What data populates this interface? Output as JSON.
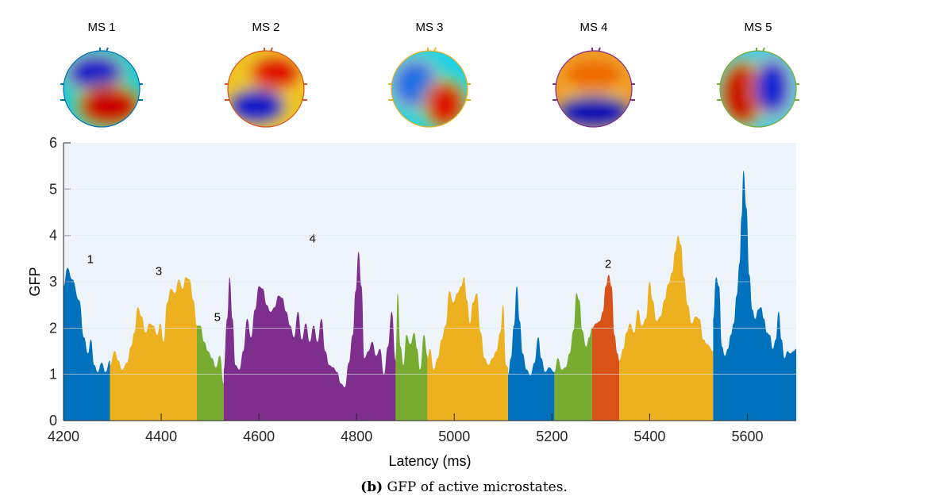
{
  "caption": {
    "prefix": "(b)",
    "text": "GFP of active microstates."
  },
  "topomaps": [
    {
      "title": "MS 1",
      "ring": "#0072BD"
    },
    {
      "title": "MS 2",
      "ring": "#D95319"
    },
    {
      "title": "MS 3",
      "ring": "#EDB120"
    },
    {
      "title": "MS 4",
      "ring": "#7E2F8E"
    },
    {
      "title": "MS 5",
      "ring": "#77AC30"
    }
  ],
  "chart_data": {
    "type": "area",
    "title": "",
    "xlabel": "Latency (ms)",
    "ylabel": "GFP",
    "xlim": [
      4200,
      5700
    ],
    "ylim": [
      0,
      6
    ],
    "xticks": [
      4200,
      4400,
      4600,
      4800,
      5000,
      5200,
      5400,
      5600
    ],
    "yticks": [
      0,
      1,
      2,
      3,
      4,
      5,
      6
    ],
    "background": "#EDF4FC",
    "state_colors": {
      "1": "#0072BD",
      "2": "#D95319",
      "3": "#EDB120",
      "4": "#7E2F8E",
      "5": "#77AC30"
    },
    "segments": [
      {
        "state": 1,
        "start": 4200,
        "end": 4295,
        "label": "1",
        "label_x": 4255,
        "label_y": 3.4,
        "points": [
          [
            4200,
            2.9
          ],
          [
            4208,
            3.3
          ],
          [
            4218,
            3.05
          ],
          [
            4232,
            2.6
          ],
          [
            4242,
            1.8
          ],
          [
            4250,
            1.45
          ],
          [
            4256,
            1.75
          ],
          [
            4263,
            1.2
          ],
          [
            4270,
            1.05
          ],
          [
            4278,
            1.25
          ],
          [
            4286,
            1.05
          ],
          [
            4295,
            1.3
          ]
        ]
      },
      {
        "state": 3,
        "start": 4295,
        "end": 4473,
        "label": "3",
        "label_x": 4395,
        "label_y": 3.15,
        "points": [
          [
            4295,
            1.2
          ],
          [
            4305,
            1.5
          ],
          [
            4312,
            1.3
          ],
          [
            4320,
            1.1
          ],
          [
            4330,
            1.25
          ],
          [
            4338,
            1.6
          ],
          [
            4345,
            1.9
          ],
          [
            4352,
            2.45
          ],
          [
            4360,
            2.25
          ],
          [
            4368,
            1.9
          ],
          [
            4376,
            2.1
          ],
          [
            4384,
            2.05
          ],
          [
            4392,
            1.85
          ],
          [
            4398,
            2.1
          ],
          [
            4405,
            1.7
          ],
          [
            4412,
            2.55
          ],
          [
            4420,
            2.85
          ],
          [
            4428,
            2.75
          ],
          [
            4436,
            3.05
          ],
          [
            4444,
            2.85
          ],
          [
            4450,
            3.1
          ],
          [
            4458,
            3.05
          ],
          [
            4466,
            2.6
          ],
          [
            4473,
            2.05
          ]
        ]
      },
      {
        "state": 5,
        "start": 4473,
        "end": 4528,
        "label": "5",
        "label_x": 4515,
        "label_y": 2.15,
        "points": [
          [
            4473,
            2.05
          ],
          [
            4480,
            2.05
          ],
          [
            4488,
            1.7
          ],
          [
            4496,
            1.5
          ],
          [
            4504,
            1.35
          ],
          [
            4512,
            1.15
          ],
          [
            4520,
            1.4
          ],
          [
            4528,
            0.8
          ]
        ]
      },
      {
        "state": 4,
        "start": 4528,
        "end": 4880,
        "label": "4",
        "label_x": 4710,
        "label_y": 3.85,
        "points": [
          [
            4528,
            1.1
          ],
          [
            4535,
            2.2
          ],
          [
            4540,
            3.1
          ],
          [
            4546,
            2.2
          ],
          [
            4552,
            1.2
          ],
          [
            4560,
            1.1
          ],
          [
            4568,
            1.5
          ],
          [
            4576,
            2.2
          ],
          [
            4584,
            1.8
          ],
          [
            4592,
            2.4
          ],
          [
            4600,
            2.9
          ],
          [
            4608,
            2.85
          ],
          [
            4616,
            2.5
          ],
          [
            4624,
            2.35
          ],
          [
            4632,
            2.45
          ],
          [
            4640,
            2.7
          ],
          [
            4648,
            2.65
          ],
          [
            4656,
            2.35
          ],
          [
            4664,
            2.05
          ],
          [
            4672,
            1.8
          ],
          [
            4680,
            2.35
          ],
          [
            4688,
            1.75
          ],
          [
            4696,
            2.1
          ],
          [
            4704,
            1.7
          ],
          [
            4712,
            2.05
          ],
          [
            4720,
            1.7
          ],
          [
            4728,
            2.2
          ],
          [
            4736,
            1.5
          ],
          [
            4744,
            1.2
          ],
          [
            4752,
            1.15
          ],
          [
            4760,
            1.05
          ],
          [
            4768,
            0.8
          ],
          [
            4776,
            0.72
          ],
          [
            4784,
            1.25
          ],
          [
            4792,
            1.85
          ],
          [
            4798,
            2.8
          ],
          [
            4804,
            3.65
          ],
          [
            4810,
            2.9
          ],
          [
            4816,
            1.35
          ],
          [
            4824,
            1.5
          ],
          [
            4832,
            1.7
          ],
          [
            4840,
            1.4
          ],
          [
            4848,
            1.55
          ],
          [
            4856,
            1.0
          ],
          [
            4864,
            1.6
          ],
          [
            4872,
            2.35
          ],
          [
            4880,
            1.3
          ]
        ]
      },
      {
        "state": 5,
        "start": 4880,
        "end": 4945,
        "points": [
          [
            4880,
            1.4
          ],
          [
            4884,
            2.75
          ],
          [
            4890,
            1.6
          ],
          [
            4896,
            1.2
          ],
          [
            4902,
            1.85
          ],
          [
            4910,
            1.65
          ],
          [
            4918,
            1.9
          ],
          [
            4924,
            1.55
          ],
          [
            4930,
            1.1
          ],
          [
            4938,
            1.85
          ],
          [
            4945,
            1.4
          ]
        ]
      },
      {
        "state": 3,
        "start": 4945,
        "end": 5110,
        "points": [
          [
            4945,
            1.35
          ],
          [
            4950,
            1.55
          ],
          [
            4958,
            1.1
          ],
          [
            4966,
            1.35
          ],
          [
            4974,
            1.75
          ],
          [
            4982,
            2.05
          ],
          [
            4990,
            2.8
          ],
          [
            4998,
            2.55
          ],
          [
            5006,
            2.75
          ],
          [
            5014,
            2.9
          ],
          [
            5020,
            3.1
          ],
          [
            5026,
            2.6
          ],
          [
            5032,
            2.1
          ],
          [
            5038,
            2.55
          ],
          [
            5046,
            2.75
          ],
          [
            5054,
            1.9
          ],
          [
            5062,
            1.35
          ],
          [
            5070,
            1.2
          ],
          [
            5078,
            1.35
          ],
          [
            5086,
            1.5
          ],
          [
            5094,
            1.9
          ],
          [
            5100,
            2.5
          ],
          [
            5106,
            1.2
          ],
          [
            5110,
            1.15
          ]
        ]
      },
      {
        "state": 1,
        "start": 5110,
        "end": 5205,
        "points": [
          [
            5110,
            1.0
          ],
          [
            5116,
            1.35
          ],
          [
            5122,
            2.05
          ],
          [
            5128,
            2.9
          ],
          [
            5134,
            2.15
          ],
          [
            5140,
            1.45
          ],
          [
            5148,
            1.1
          ],
          [
            5156,
            0.98
          ],
          [
            5164,
            1.25
          ],
          [
            5172,
            1.8
          ],
          [
            5178,
            1.35
          ],
          [
            5186,
            1.05
          ],
          [
            5194,
            1.15
          ],
          [
            5205,
            1.05
          ]
        ]
      },
      {
        "state": 5,
        "start": 5205,
        "end": 5282,
        "points": [
          [
            5205,
            1.05
          ],
          [
            5212,
            1.35
          ],
          [
            5220,
            1.1
          ],
          [
            5228,
            1.15
          ],
          [
            5236,
            1.45
          ],
          [
            5244,
            1.95
          ],
          [
            5250,
            2.75
          ],
          [
            5256,
            2.6
          ],
          [
            5262,
            1.95
          ],
          [
            5270,
            1.6
          ],
          [
            5276,
            1.8
          ],
          [
            5282,
            2.0
          ]
        ]
      },
      {
        "state": 2,
        "start": 5282,
        "end": 5338,
        "label": "2",
        "label_x": 5315,
        "label_y": 3.3,
        "points": [
          [
            5282,
            2.0
          ],
          [
            5290,
            2.1
          ],
          [
            5298,
            2.15
          ],
          [
            5304,
            2.35
          ],
          [
            5310,
            2.9
          ],
          [
            5316,
            3.15
          ],
          [
            5322,
            2.9
          ],
          [
            5328,
            1.85
          ],
          [
            5334,
            1.45
          ],
          [
            5338,
            1.3
          ]
        ]
      },
      {
        "state": 3,
        "start": 5338,
        "end": 5530,
        "points": [
          [
            5338,
            1.3
          ],
          [
            5346,
            1.55
          ],
          [
            5352,
            1.9
          ],
          [
            5360,
            2.1
          ],
          [
            5368,
            1.9
          ],
          [
            5376,
            2.4
          ],
          [
            5384,
            2.05
          ],
          [
            5392,
            2.2
          ],
          [
            5400,
            3.0
          ],
          [
            5406,
            2.6
          ],
          [
            5414,
            2.15
          ],
          [
            5422,
            2.25
          ],
          [
            5430,
            2.6
          ],
          [
            5438,
            2.95
          ],
          [
            5446,
            3.2
          ],
          [
            5452,
            3.65
          ],
          [
            5458,
            4.0
          ],
          [
            5464,
            3.8
          ],
          [
            5470,
            3.1
          ],
          [
            5478,
            2.5
          ],
          [
            5486,
            2.1
          ],
          [
            5494,
            2.25
          ],
          [
            5502,
            2.2
          ],
          [
            5510,
            1.75
          ],
          [
            5518,
            1.65
          ],
          [
            5530,
            1.5
          ]
        ]
      },
      {
        "state": 1,
        "start": 5530,
        "end": 5700,
        "points": [
          [
            5530,
            2.2
          ],
          [
            5536,
            3.1
          ],
          [
            5542,
            2.9
          ],
          [
            5548,
            1.6
          ],
          [
            5554,
            1.4
          ],
          [
            5560,
            1.55
          ],
          [
            5566,
            1.85
          ],
          [
            5572,
            2.1
          ],
          [
            5578,
            2.7
          ],
          [
            5584,
            3.4
          ],
          [
            5588,
            4.4
          ],
          [
            5592,
            5.4
          ],
          [
            5598,
            4.6
          ],
          [
            5604,
            3.15
          ],
          [
            5610,
            2.4
          ],
          [
            5616,
            2.2
          ],
          [
            5622,
            2.4
          ],
          [
            5628,
            2.45
          ],
          [
            5634,
            2.2
          ],
          [
            5640,
            1.9
          ],
          [
            5646,
            1.85
          ],
          [
            5652,
            1.55
          ],
          [
            5658,
            1.75
          ],
          [
            5664,
            2.35
          ],
          [
            5670,
            1.75
          ],
          [
            5676,
            1.35
          ],
          [
            5682,
            1.5
          ],
          [
            5688,
            1.45
          ],
          [
            5694,
            1.5
          ],
          [
            5700,
            1.55
          ]
        ]
      }
    ]
  }
}
